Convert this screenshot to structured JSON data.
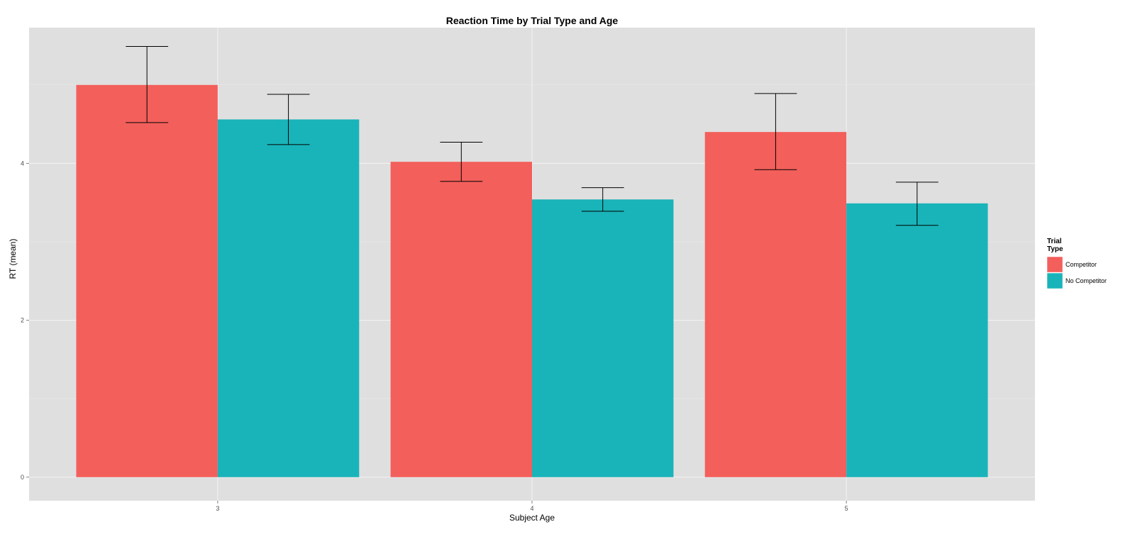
{
  "chart_data": {
    "type": "bar",
    "title": "Reaction Time by Trial Type and Age",
    "xlabel": "Subject Age",
    "ylabel": "RT (mean)",
    "categories": [
      "3",
      "4",
      "5"
    ],
    "ylim": [
      -0.3,
      5.73
    ],
    "yticks": [
      0,
      2,
      4
    ],
    "ytick_labels": [
      "0",
      "2",
      "4"
    ],
    "minor_yticks": [
      1,
      3,
      5
    ],
    "grid": true,
    "legend": {
      "title": "Trial\nType",
      "position": "right",
      "entries": [
        "Competitor",
        "No Competitor"
      ]
    },
    "series": [
      {
        "name": "Competitor",
        "color": "#F35F5B",
        "values": [
          5.0,
          4.02,
          4.4
        ],
        "error_low": [
          4.52,
          3.77,
          3.92
        ],
        "error_high": [
          5.49,
          4.27,
          4.89
        ]
      },
      {
        "name": "No Competitor",
        "color": "#19B4B9",
        "values": [
          4.56,
          3.54,
          3.49
        ],
        "error_low": [
          4.24,
          3.39,
          3.21
        ],
        "error_high": [
          4.88,
          3.69,
          3.76
        ]
      }
    ],
    "colors": {
      "panel_background": "#DFDFDF",
      "grid_major": "#F0F0F0",
      "grid_minor": "#E8E8E8",
      "error_bar": "#000000"
    }
  }
}
